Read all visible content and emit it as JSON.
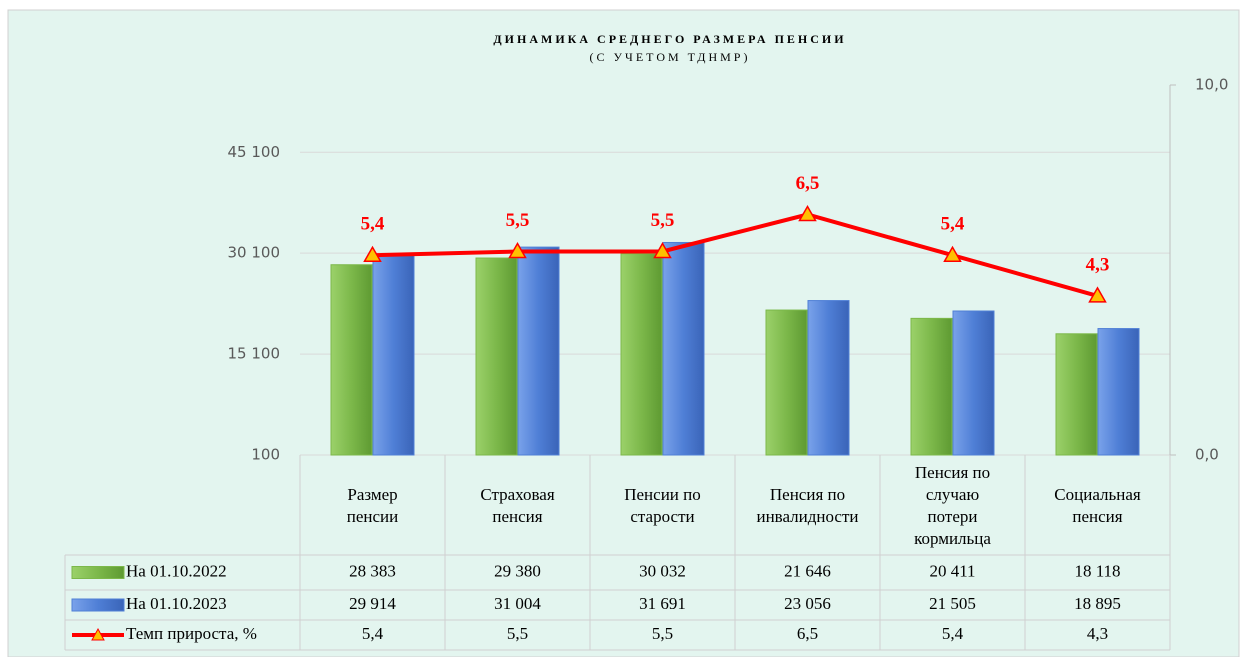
{
  "chart_data": {
    "type": "bar",
    "title": "ДИНАМИКА СРЕДНЕГО РАЗМЕРА ПЕНСИИ",
    "subtitle": "(С УЧЕТОМ ТДНМР)",
    "categories": [
      "Размер пенсии",
      "Страховая пенсия",
      "Пенсии по старости",
      "Пенсия по инвалидности",
      "Пенсия по случаю потери кормильца",
      "Социальная пенсия"
    ],
    "series": [
      {
        "name": "На 01.10.2022",
        "type": "bar",
        "color": "#7cb84a",
        "values": [
          28383,
          29380,
          30032,
          21646,
          20411,
          18118
        ],
        "value_labels": [
          "28 383",
          "29 380",
          "30 032",
          "21 646",
          "20 411",
          "18 118"
        ]
      },
      {
        "name": "На 01.10.2023",
        "type": "bar",
        "color": "#4f7fd6",
        "values": [
          29914,
          31004,
          31691,
          23056,
          21505,
          18895
        ],
        "value_labels": [
          "29 914",
          "31 004",
          "31 691",
          "23 056",
          "21 505",
          "18 895"
        ]
      },
      {
        "name": "Темп прироста, %",
        "type": "line",
        "axis": "y2",
        "color": "#ff0000",
        "values": [
          5.4,
          5.5,
          5.5,
          6.5,
          5.4,
          4.3
        ],
        "value_labels": [
          "5,4",
          "5,5",
          "5,5",
          "6,5",
          "5,4",
          "4,3"
        ]
      }
    ],
    "ylim": [
      100,
      55100
    ],
    "yticks": [
      100,
      {
        "value": 15100,
        "label": "15 100"
      },
      {
        "value": 30100,
        "label": "30 100"
      },
      {
        "value": 45100,
        "label": "45 100"
      }
    ],
    "y2lim": [
      0,
      10
    ],
    "y2ticks": [
      {
        "value": 0,
        "label": "0,0"
      },
      {
        "value": 10,
        "label": "10,0"
      }
    ],
    "grid": true
  }
}
